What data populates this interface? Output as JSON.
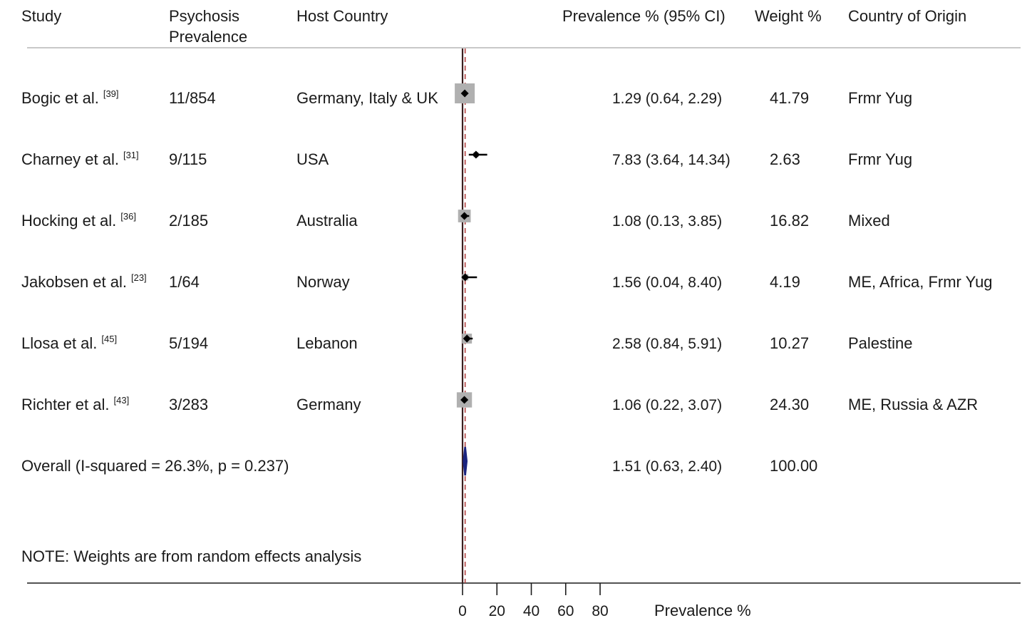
{
  "headers": {
    "study": "Study",
    "prevalence_line1": "Psychosis",
    "prevalence_line2": "Prevalence",
    "host": "Host Country",
    "ci": "Prevalence % (95% CI)",
    "weight": "Weight %",
    "origin": "Country of Origin"
  },
  "chart_data": {
    "type": "forest",
    "xlabel": "Prevalence %",
    "xlim": [
      0,
      80
    ],
    "xticks": [
      0,
      20,
      40,
      60,
      80
    ],
    "reference_line": 0,
    "studies": [
      {
        "name": "Bogic et al.",
        "ref": "[39]",
        "count": "11/854",
        "host": "Germany, Italy & UK",
        "estimate": 1.29,
        "lower": 0.64,
        "upper": 2.29,
        "ci_text": "1.29 (0.64, 2.29)",
        "weight": 41.79,
        "weight_text": "41.79",
        "origin": "Frmr Yug"
      },
      {
        "name": "Charney et al.",
        "ref": "[31]",
        "count": "9/115",
        "host": "USA",
        "estimate": 7.83,
        "lower": 3.64,
        "upper": 14.34,
        "ci_text": "7.83 (3.64, 14.34)",
        "weight": 2.63,
        "weight_text": "2.63",
        "origin": "Frmr Yug"
      },
      {
        "name": "Hocking et al.",
        "ref": "[36]",
        "count": "2/185",
        "host": "Australia",
        "estimate": 1.08,
        "lower": 0.13,
        "upper": 3.85,
        "ci_text": "1.08 (0.13, 3.85)",
        "weight": 16.82,
        "weight_text": "16.82",
        "origin": "Mixed"
      },
      {
        "name": "Jakobsen et al.",
        "ref": "[23]",
        "count": "1/64",
        "host": "Norway",
        "estimate": 1.56,
        "lower": 0.04,
        "upper": 8.4,
        "ci_text": "1.56 (0.04, 8.40)",
        "weight": 4.19,
        "weight_text": "4.19",
        "origin": "ME, Africa, Frmr Yug"
      },
      {
        "name": "Llosa et al.",
        "ref": "[45]",
        "count": "5/194",
        "host": "Lebanon",
        "estimate": 2.58,
        "lower": 0.84,
        "upper": 5.91,
        "ci_text": "2.58 (0.84, 5.91)",
        "weight": 10.27,
        "weight_text": "10.27",
        "origin": "Palestine"
      },
      {
        "name": "Richter et al.",
        "ref": "[43]",
        "count": "3/283",
        "host": "Germany",
        "estimate": 1.06,
        "lower": 0.22,
        "upper": 3.07,
        "ci_text": "1.06 (0.22, 3.07)",
        "weight": 24.3,
        "weight_text": "24.30",
        "origin": "ME, Russia & AZR"
      }
    ],
    "overall": {
      "label": "Overall  (I-squared = 26.3%, p = 0.237)",
      "estimate": 1.51,
      "lower": 0.63,
      "upper": 2.4,
      "ci_text": "1.51 (0.63, 2.40)",
      "weight_text": "100.00"
    },
    "note": "NOTE: Weights are from random effects analysis",
    "colors": {
      "null_line": "#3a1f1f",
      "overall_line": "#b34040",
      "weight_box": "#b0b0b0",
      "point": "#000000",
      "diamond": "#1a237e"
    }
  }
}
